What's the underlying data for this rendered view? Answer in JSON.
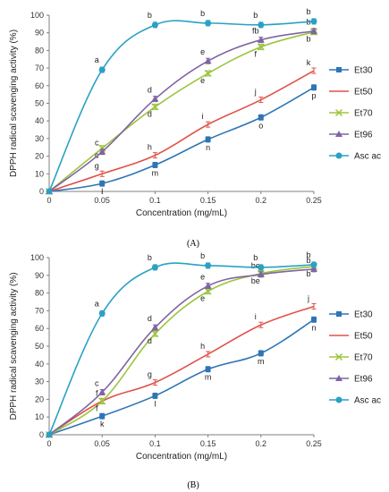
{
  "colors": {
    "Et30": "#2e75b6",
    "Et50": "#e0524a",
    "Et70": "#9bc53d",
    "Et96": "#8064a2",
    "Asc ac": "#2aa1c4",
    "axis": "#7f7f7f"
  },
  "chart_data": [
    {
      "type": "line",
      "panel_label": "(A)",
      "xlabel": "Concentration (mg/mL)",
      "ylabel": "DPPH radical scavenging activity (%)",
      "x": [
        0,
        0.05,
        0.1,
        0.15,
        0.2,
        0.25
      ],
      "x_ticks": [
        "0",
        "0.05",
        "0.1",
        "0.15",
        "0.2",
        "0.25"
      ],
      "xlim": [
        0,
        0.25
      ],
      "ylim": [
        0,
        100
      ],
      "y_ticks": [
        0,
        10,
        20,
        30,
        40,
        50,
        60,
        70,
        80,
        90,
        100
      ],
      "legend": "right",
      "grid": false,
      "series": [
        {
          "name": "Et30",
          "marker": "square",
          "values": [
            0,
            4.5,
            15,
            29.5,
            42,
            59
          ],
          "letters": [
            "",
            "l",
            "m",
            "n",
            "o",
            "p"
          ]
        },
        {
          "name": "Et50",
          "marker": "none",
          "values": [
            0,
            10,
            20.5,
            38,
            52,
            68.5
          ],
          "letters": [
            "",
            "g",
            "h",
            "i",
            "j",
            "k"
          ]
        },
        {
          "name": "Et70",
          "marker": "x",
          "values": [
            0,
            24.5,
            48,
            67,
            82,
            90.5
          ],
          "letters": [
            "",
            "c",
            "d",
            "e",
            "f",
            "b"
          ]
        },
        {
          "name": "Et96",
          "marker": "triangle",
          "values": [
            0,
            22.5,
            52.5,
            74,
            86,
            91
          ],
          "letters": [
            "",
            "c",
            "d",
            "e",
            "fb",
            "b"
          ]
        },
        {
          "name": "Asc ac",
          "marker": "circle",
          "values": [
            0,
            69,
            94.5,
            95.5,
            94.5,
            96.5
          ],
          "letters": [
            "",
            "a",
            "b",
            "b",
            "b",
            "b"
          ]
        }
      ]
    },
    {
      "type": "line",
      "panel_label": "(B)",
      "xlabel": "Concentration (mg/mL)",
      "ylabel": "DPPH radical scavenging activity (%)",
      "x": [
        0,
        0.05,
        0.1,
        0.15,
        0.2,
        0.25
      ],
      "x_ticks": [
        "0",
        "0.05",
        "0.1",
        "0.15",
        "0.2",
        "0.25"
      ],
      "xlim": [
        0,
        0.25
      ],
      "ylim": [
        0,
        100
      ],
      "y_ticks": [
        0,
        10,
        20,
        30,
        40,
        50,
        60,
        70,
        80,
        90,
        100
      ],
      "legend": "right",
      "grid": false,
      "series": [
        {
          "name": "Et30",
          "marker": "square",
          "values": [
            0,
            10.5,
            22,
            37,
            46,
            65
          ],
          "letters": [
            "",
            "k",
            "l",
            "m",
            "m",
            "n"
          ]
        },
        {
          "name": "Et50",
          "marker": "none",
          "values": [
            0,
            19,
            29.5,
            45.5,
            62,
            72.5
          ],
          "letters": [
            "",
            "f",
            "g",
            "h",
            "i",
            "j"
          ]
        },
        {
          "name": "Et70",
          "marker": "x",
          "values": [
            0,
            19,
            57,
            81,
            91,
            95
          ],
          "letters": [
            "",
            "f",
            "d",
            "e",
            "be",
            "b"
          ]
        },
        {
          "name": "Et96",
          "marker": "triangle",
          "values": [
            0,
            24,
            60.5,
            84,
            90.5,
            93.5
          ],
          "letters": [
            "",
            "c",
            "d",
            "e",
            "be",
            "b"
          ]
        },
        {
          "name": "Asc ac",
          "marker": "circle",
          "values": [
            0,
            68.5,
            94.5,
            95.5,
            94.5,
            96
          ],
          "letters": [
            "",
            "a",
            "b",
            "b",
            "b",
            "b"
          ]
        }
      ]
    }
  ]
}
